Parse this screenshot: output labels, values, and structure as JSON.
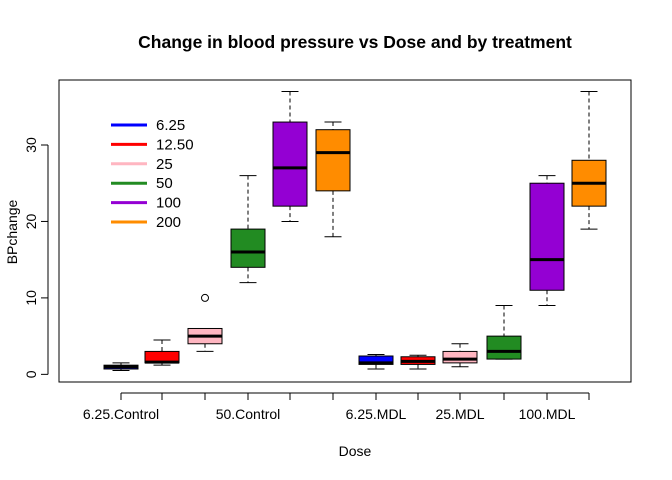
{
  "chart_data": {
    "type": "boxplot",
    "title": "Change in blood pressure vs Dose and by treatment",
    "xlabel": "Dose",
    "ylabel": "BPchange",
    "ylim": [
      -1,
      38.5
    ],
    "yticks": [
      0,
      10,
      20,
      30
    ],
    "grid": false,
    "legend_position": "top-left",
    "x_tick_labels_shown": [
      "6.25.Control",
      "50.Control",
      "6.25.MDL",
      "25.MDL",
      "100.MDL"
    ],
    "legend": [
      {
        "label": "6.25",
        "color": "#0000ff"
      },
      {
        "label": "12.50",
        "color": "#ff0000"
      },
      {
        "label": "25",
        "color": "#ffb6c1"
      },
      {
        "label": "50",
        "color": "#228b22"
      },
      {
        "label": "100",
        "color": "#9400d3"
      },
      {
        "label": "200",
        "color": "#ff8c00"
      }
    ],
    "boxes": [
      {
        "group": "6.25.Control",
        "color": "#0000ff",
        "whisker_low": 0.5,
        "q1": 0.7,
        "median": 1.0,
        "q3": 1.2,
        "whisker_high": 1.5,
        "outliers": []
      },
      {
        "group": "12.50.Control",
        "color": "#ff0000",
        "whisker_low": 1.2,
        "q1": 1.5,
        "median": 1.6,
        "q3": 3.0,
        "whisker_high": 4.5,
        "outliers": []
      },
      {
        "group": "25.Control",
        "color": "#ffb6c1",
        "whisker_low": 3.0,
        "q1": 4.0,
        "median": 5.0,
        "q3": 6.0,
        "whisker_high": 6.0,
        "outliers": [
          10
        ]
      },
      {
        "group": "50.Control",
        "color": "#228b22",
        "whisker_low": 12.0,
        "q1": 14.0,
        "median": 16.0,
        "q3": 19.0,
        "whisker_high": 26.0,
        "outliers": []
      },
      {
        "group": "100.Control",
        "color": "#9400d3",
        "whisker_low": 20.0,
        "q1": 22.0,
        "median": 27.0,
        "q3": 33.0,
        "whisker_high": 37.0,
        "outliers": []
      },
      {
        "group": "200.Control",
        "color": "#ff8c00",
        "whisker_low": 18.0,
        "q1": 24.0,
        "median": 29.0,
        "q3": 32.0,
        "whisker_high": 33.0,
        "outliers": []
      },
      {
        "group": "6.25.MDL",
        "color": "#0000ff",
        "whisker_low": 0.7,
        "q1": 1.3,
        "median": 1.5,
        "q3": 2.4,
        "whisker_high": 2.6,
        "outliers": []
      },
      {
        "group": "12.50.MDL",
        "color": "#ff0000",
        "whisker_low": 0.7,
        "q1": 1.3,
        "median": 1.7,
        "q3": 2.3,
        "whisker_high": 2.5,
        "outliers": []
      },
      {
        "group": "25.MDL",
        "color": "#ffb6c1",
        "whisker_low": 1.0,
        "q1": 1.5,
        "median": 2.0,
        "q3": 3.0,
        "whisker_high": 4.0,
        "outliers": []
      },
      {
        "group": "50.MDL",
        "color": "#228b22",
        "whisker_low": 2.0,
        "q1": 2.0,
        "median": 3.0,
        "q3": 5.0,
        "whisker_high": 9.0,
        "outliers": []
      },
      {
        "group": "100.MDL",
        "color": "#9400d3",
        "whisker_low": 9.0,
        "q1": 11.0,
        "median": 15.0,
        "q3": 25.0,
        "whisker_high": 26.0,
        "outliers": []
      },
      {
        "group": "200.MDL",
        "color": "#ff8c00",
        "whisker_low": 19.0,
        "q1": 22.0,
        "median": 25.0,
        "q3": 28.0,
        "whisker_high": 37.0,
        "outliers": []
      }
    ]
  }
}
